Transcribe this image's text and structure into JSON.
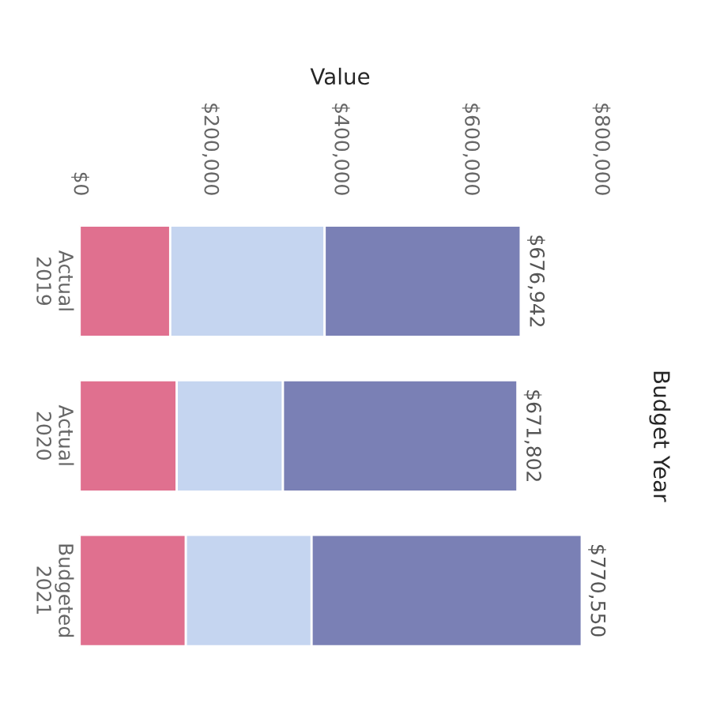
{
  "chart_data": {
    "type": "bar",
    "orientation": "horizontal",
    "stacked": true,
    "xlabel": "Value",
    "ylabel": "Budget Year",
    "categories": [
      "Actual\n2019",
      "Actual\n2020",
      "Budgeted\n2021"
    ],
    "series": [
      {
        "color": "#e0708f",
        "values": [
          139000,
          149000,
          163000
        ]
      },
      {
        "color": "#c5d5f0",
        "values": [
          237000,
          163000,
          193000
        ]
      },
      {
        "color": "#7a80b5",
        "values": [
          300942,
          359802,
          414550
        ]
      }
    ],
    "totals": [
      "$676,942",
      "$671,802",
      "$770,550"
    ],
    "xlim": [
      0,
      800000
    ],
    "xticks": [
      {
        "value": 0,
        "label": "$0"
      },
      {
        "value": 200000,
        "label": "$200,000"
      },
      {
        "value": 400000,
        "label": "$400,000"
      },
      {
        "value": 600000,
        "label": "$600,000"
      },
      {
        "value": 800000,
        "label": "$800,000"
      }
    ],
    "grid": false
  }
}
